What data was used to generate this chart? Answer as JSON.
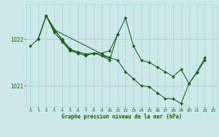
{
  "bg_color": "#cce8e8",
  "line_color": "#1a5c1a",
  "grid_color": "#aad4d4",
  "xlabel_label": "Graphe pression niveau de la mer (hPa)",
  "xlim": [
    -0.5,
    23.5
  ],
  "ylim": [
    1020.55,
    1022.75
  ],
  "yticks": [
    1021,
    1022
  ],
  "xticks": [
    0,
    1,
    2,
    3,
    4,
    5,
    6,
    7,
    8,
    9,
    10,
    11,
    12,
    13,
    14,
    15,
    16,
    17,
    18,
    19,
    20,
    21,
    22,
    23
  ],
  "lines": [
    {
      "x": [
        0,
        1,
        2,
        3,
        4,
        5,
        6,
        7,
        8,
        9,
        10,
        11,
        12,
        13,
        14,
        15,
        16,
        17,
        18,
        19,
        20,
        21,
        22
      ],
      "y": [
        1021.85,
        1022.0,
        1022.5,
        1022.15,
        1021.95,
        1021.75,
        1021.7,
        1021.65,
        1021.7,
        1021.65,
        1021.55,
        1022.1,
        1022.45,
        1021.85,
        1021.55,
        1021.5,
        1021.4,
        1021.3,
        1021.2,
        1021.35,
        1021.05,
        1021.3,
        1021.6
      ]
    },
    {
      "x": [
        1,
        2,
        3,
        4,
        5,
        6,
        7,
        8,
        9,
        10,
        11
      ],
      "y": [
        1022.0,
        1022.5,
        1022.2,
        1022.0,
        1021.8,
        1021.7,
        1021.65,
        1021.7,
        1021.7,
        1021.75,
        1022.1
      ]
    },
    {
      "x": [
        1,
        2,
        4,
        5,
        6,
        7,
        8,
        9,
        10
      ],
      "y": [
        1022.0,
        1022.5,
        1021.97,
        1021.77,
        1021.73,
        1021.68,
        1021.7,
        1021.65,
        1021.6
      ]
    },
    {
      "x": [
        2,
        3,
        10,
        11,
        12,
        13,
        14,
        15,
        16,
        17,
        18,
        19,
        20,
        21,
        22
      ],
      "y": [
        1022.5,
        1022.2,
        1021.6,
        1021.55,
        1021.3,
        1021.15,
        1021.0,
        1020.98,
        1020.85,
        1020.73,
        1020.72,
        1020.62,
        1021.05,
        1021.28,
        1021.55
      ]
    }
  ]
}
